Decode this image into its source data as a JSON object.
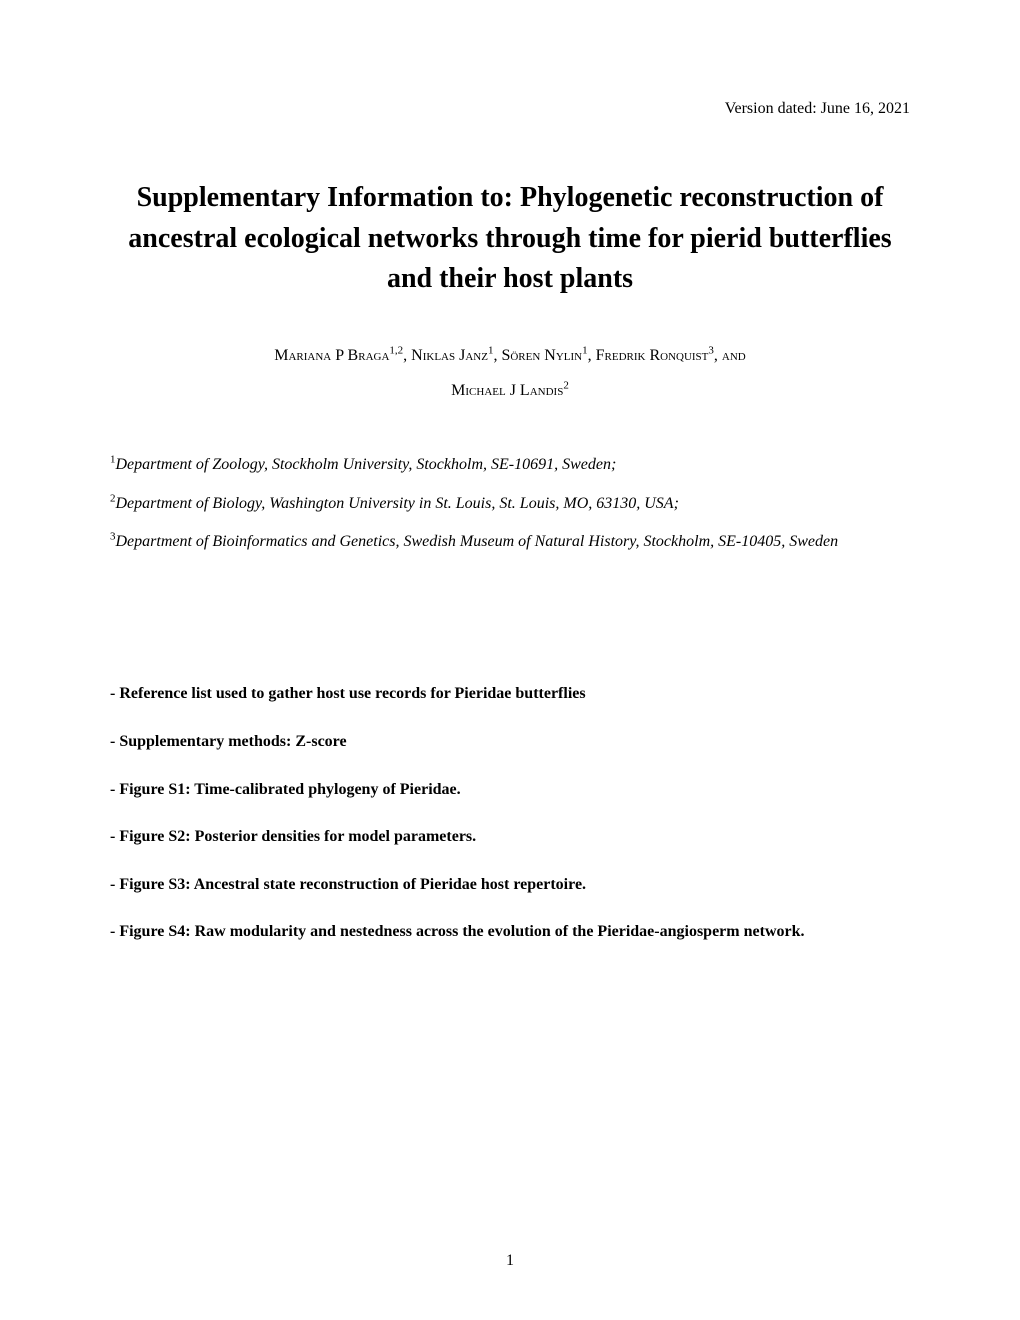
{
  "header": {
    "version_date": "Version dated: June 16, 2021"
  },
  "title": "Supplementary Information to: Phylogenetic reconstruction of ancestral ecological networks through time for pierid butterflies and their host plants",
  "authors": {
    "author1_name": "Mariana P Braga",
    "author1_affil": "1,2",
    "author2_name": "Niklas Janz",
    "author2_affil": "1",
    "author3_name": "Sören Nylin",
    "author3_affil": "1",
    "author4_name": "Fredrik Ronquist",
    "author4_affil": "3",
    "and_text": ", and",
    "author5_name": "Michael J Landis",
    "author5_affil": "2"
  },
  "affiliations": {
    "affil1_num": "1",
    "affil1_text": "Department of Zoology, Stockholm University, Stockholm, SE-10691, Sweden;",
    "affil2_num": "2",
    "affil2_text": "Department of Biology, Washington University in St. Louis, St. Louis, MO, 63130, USA;",
    "affil3_num": "3",
    "affil3_text": "Department of Bioinformatics and Genetics, Swedish Museum of Natural History, Stockholm, SE-10405, Sweden"
  },
  "contents": {
    "item1": "- Reference list used to gather host use records for Pieridae butterflies",
    "item2": "- Supplementary methods: Z-score",
    "item3": "- Figure S1: Time-calibrated phylogeny of Pieridae.",
    "item4": "- Figure S2: Posterior densities for model parameters.",
    "item5": "- Figure S3: Ancestral state reconstruction of Pieridae host repertoire.",
    "item6": "- Figure S4: Raw modularity and nestedness across the evolution of the Pieridae-angiosperm network."
  },
  "page_number": "1"
}
